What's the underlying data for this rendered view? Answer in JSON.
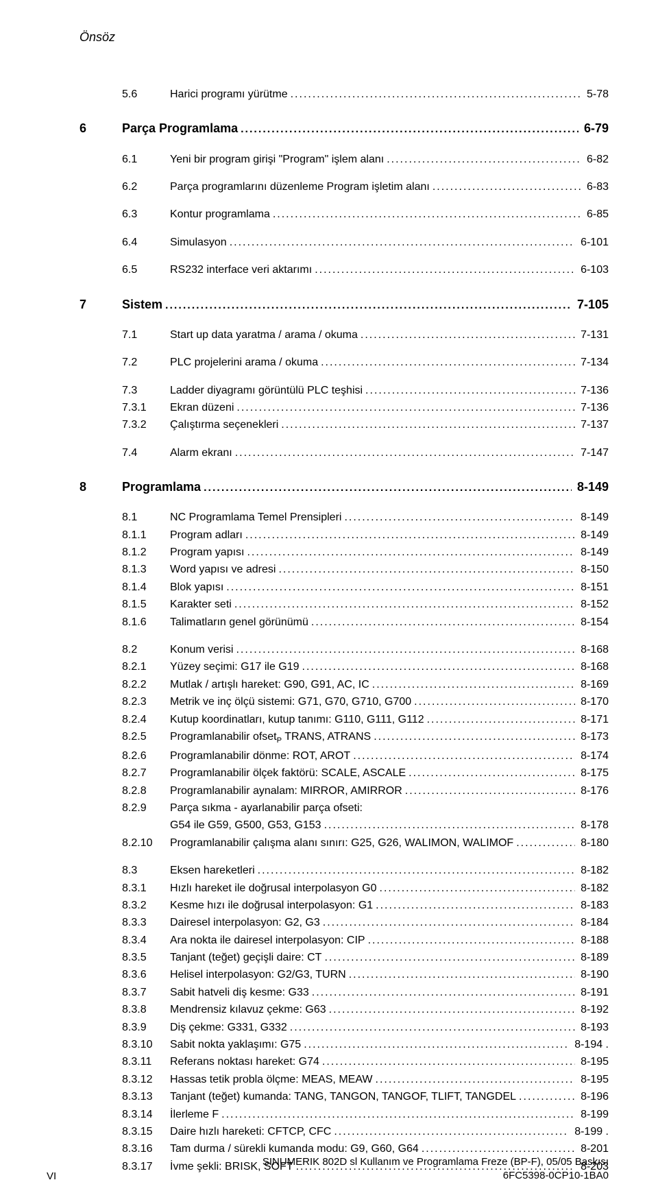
{
  "header": "Önsöz",
  "rows": [
    {
      "type": "sub",
      "num": "5.6",
      "title": "Harici programı yürütme",
      "pg": "5-78",
      "prependGap": false
    },
    {
      "type": "ch",
      "num": "6",
      "title": "Parça Programlama",
      "pg": "6-79"
    },
    {
      "type": "sub",
      "num": "6.1",
      "title": "Yeni bir program girişi \"Program\" işlem alanı",
      "pg": "6-82",
      "gapBefore": true
    },
    {
      "type": "sub",
      "num": "6.2",
      "title": "Parça programlarını düzenleme Program işletim alanı",
      "pg": "6-83",
      "gapBefore": true
    },
    {
      "type": "sub",
      "num": "6.3",
      "title": "Kontur programlama",
      "pg": "6-85",
      "gapBefore": true
    },
    {
      "type": "sub",
      "num": "6.4",
      "title": "Simulasyon",
      "pg": "6-101",
      "gapBefore": true
    },
    {
      "type": "sub",
      "num": "6.5",
      "title": "RS232 interface veri aktarımı",
      "pg": "6-103",
      "gapBefore": true
    },
    {
      "type": "ch",
      "num": "7",
      "title": "Sistem",
      "pg": "7-105"
    },
    {
      "type": "sub",
      "num": "7.1",
      "title": "Start up data yaratma / arama / okuma",
      "pg": "7-131",
      "gapBefore": true
    },
    {
      "type": "sub",
      "num": "7.2",
      "title": "PLC projelerini arama / okuma",
      "pg": "7-134",
      "gapBefore": true
    },
    {
      "type": "sub",
      "num": "7.3",
      "title": "Ladder diyagramı görüntülü PLC teşhisi",
      "pg": "7-136",
      "gapBefore": true
    },
    {
      "type": "sub",
      "num": "7.3.1",
      "title": "Ekran düzeni",
      "pg": "7-136"
    },
    {
      "type": "sub",
      "num": "7.3.2",
      "title": "Çalıştırma seçenekleri",
      "pg": "7-137"
    },
    {
      "type": "sub",
      "num": "7.4",
      "title": "Alarm ekranı",
      "pg": "7-147",
      "gapBefore": true
    },
    {
      "type": "ch",
      "num": "8",
      "title": "Programlama",
      "pg": "8-149"
    },
    {
      "type": "sub",
      "num": "8.1",
      "title": "NC Programlama Temel Prensipleri",
      "pg": "8-149",
      "gapBefore": true
    },
    {
      "type": "sub",
      "num": "8.1.1",
      "title": "Program adları",
      "pg": "8-149"
    },
    {
      "type": "sub",
      "num": "8.1.2",
      "title": "Program yapısı",
      "pg": "8-149"
    },
    {
      "type": "sub",
      "num": "8.1.3",
      "title": "Word yapısı ve adresi",
      "pg": "8-150"
    },
    {
      "type": "sub",
      "num": "8.1.4",
      "title": "Blok yapısı",
      "pg": "8-151"
    },
    {
      "type": "sub",
      "num": "8.1.5",
      "title": "Karakter seti",
      "pg": "8-152"
    },
    {
      "type": "sub",
      "num": "8.1.6",
      "title": "Talimatların genel görünümü",
      "pg": "8-154"
    },
    {
      "type": "sub",
      "num": "8.2",
      "title": "Konum verisi",
      "pg": "8-168",
      "gapBefore": true
    },
    {
      "type": "sub",
      "num": "8.2.1",
      "title": "Yüzey seçimi: G17 ile G19",
      "pg": "8-168"
    },
    {
      "type": "sub",
      "num": "8.2.2",
      "title": "Mutlak / artışlı hareket: G90, G91, AC, IC",
      "pg": "8-169"
    },
    {
      "type": "sub",
      "num": "8.2.3",
      "title": "Metrik ve inç ölçü sistemi: G71, G70, G710, G700",
      "pg": "8-170"
    },
    {
      "type": "sub",
      "num": "8.2.4",
      "title": "Kutup koordinatları, kutup tanımı: G110, G111, G112",
      "pg": "8-171"
    },
    {
      "type": "sub",
      "num": "8.2.5",
      "titleHtml": "Programlanabilir ofset<sub style=\"font-size:0.7em\">P</sub> TRANS, ATRANS",
      "pg": "8-173"
    },
    {
      "type": "sub",
      "num": "8.2.6",
      "title": "Programlanabilir dönme: ROT, AROT",
      "pg": "8-174"
    },
    {
      "type": "sub",
      "num": "8.2.7",
      "title": "Programlanabilir ölçek faktörü: SCALE, ASCALE",
      "pg": "8-175"
    },
    {
      "type": "sub",
      "num": "8.2.8",
      "title": "Programlanabilir aynalam: MIRROR, AMIRROR",
      "pg": "8-176"
    },
    {
      "type": "sub",
      "num": "8.2.9",
      "title": "Parça sıkma - ayarlanabilir parça ofseti:",
      "pg": "",
      "noDots": true
    },
    {
      "type": "sub",
      "num": "",
      "title": "G54 ile G59, G500, G53, G153",
      "pg": "8-178"
    },
    {
      "type": "sub",
      "num": "8.2.10",
      "title": "Programlanabilir çalışma alanı sınırı: G25, G26, WALIMON, WALIMOF",
      "pg": "8-180"
    },
    {
      "type": "sub",
      "num": "8.3",
      "title": "Eksen hareketleri",
      "pg": "8-182",
      "gapBefore": true
    },
    {
      "type": "sub",
      "num": "8.3.1",
      "title": "Hızlı hareket ile doğrusal interpolasyon G0",
      "pg": "8-182"
    },
    {
      "type": "sub",
      "num": "8.3.2",
      "title": "Kesme hızı ile doğrusal interpolasyon: G1",
      "pg": "8-183"
    },
    {
      "type": "sub",
      "num": "8.3.3",
      "title": "Dairesel interpolasyon: G2, G3",
      "pg": "8-184"
    },
    {
      "type": "sub",
      "num": "8.3.4",
      "title": "Ara nokta ile dairesel interpolasyon: CIP",
      "pg": "8-188"
    },
    {
      "type": "sub",
      "num": "8.3.5",
      "title": "Tanjant (teğet) geçişli daire: CT",
      "pg": "8-189"
    },
    {
      "type": "sub",
      "num": "8.3.6",
      "title": "Helisel interpolasyon: G2/G3, TURN",
      "pg": "8-190"
    },
    {
      "type": "sub",
      "num": "8.3.7",
      "title": "Sabit hatveli diş kesme: G33",
      "pg": "8-191"
    },
    {
      "type": "sub",
      "num": "8.3.8",
      "title": "Mendrensiz kılavuz çekme: G63",
      "pg": "8-192"
    },
    {
      "type": "sub",
      "num": "8.3.9",
      "title": "Diş çekme: G331, G332",
      "pg": "8-193"
    },
    {
      "type": "sub",
      "num": "8.3.10",
      "title": "Sabit nokta yaklaşımı: G75",
      "pg": "8-194 ."
    },
    {
      "type": "sub",
      "num": "8.3.11",
      "title": "Referans noktası hareket: G74",
      "pg": "8-195"
    },
    {
      "type": "sub",
      "num": "8.3.12",
      "title": "Hassas tetik probla ölçme: MEAS, MEAW",
      "pg": "8-195"
    },
    {
      "type": "sub",
      "num": "8.3.13",
      "title": "Tanjant (teğet) kumanda: TANG, TANGON, TANGOF, TLIFT, TANGDEL",
      "pg": "8-196"
    },
    {
      "type": "sub",
      "num": "8.3.14",
      "title": "İlerleme F",
      "pg": "8-199"
    },
    {
      "type": "sub",
      "num": "8.3.15",
      "title": "Daire hızlı hareketi: CFTCP, CFC",
      "pg": "8-199 ."
    },
    {
      "type": "sub",
      "num": "8.3.16",
      "title": "Tam durma / sürekli kumanda modu: G9, G60, G64",
      "pg": "8-201"
    },
    {
      "type": "sub",
      "num": "8.3.17",
      "title": "İvme şekli: BRISK, SOFT",
      "pg": "8-203"
    }
  ],
  "footer": {
    "pageNumber": "VI",
    "line1": "SINUMERIK 802D sl Kullanım ve Programlama Freze (BP-F), 05/05 Baskısı",
    "line2": "6FC5398-0CP10-1BA0"
  }
}
